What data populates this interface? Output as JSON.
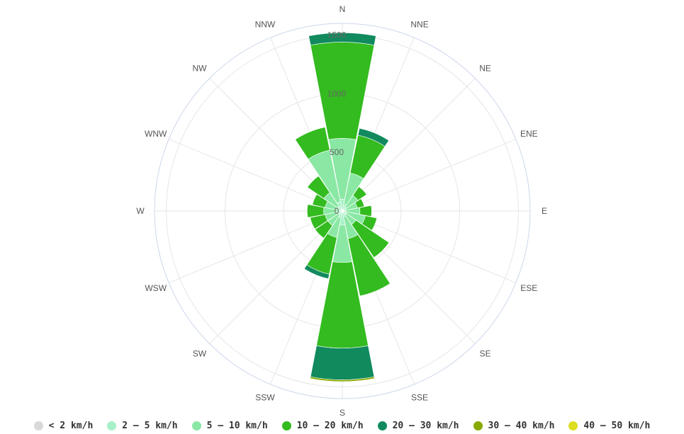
{
  "chart_data": {
    "type": "windrose",
    "title": "",
    "directions": [
      "N",
      "NNE",
      "NE",
      "ENE",
      "E",
      "ESE",
      "SE",
      "SSE",
      "S",
      "SSW",
      "SW",
      "WSW",
      "W",
      "WNW",
      "NW",
      "NNW"
    ],
    "radial_ticks": [
      0,
      500,
      1000,
      1500
    ],
    "radial_max": 1600,
    "legend_placement": "bottom",
    "series": [
      {
        "name": "< 2 km/h",
        "color": "#d9d9d9",
        "values": [
          0,
          0,
          0,
          0,
          0,
          0,
          0,
          0,
          0,
          0,
          0,
          0,
          0,
          0,
          0,
          0
        ]
      },
      {
        "name": "2 – 5 km/h",
        "color": "#a8f0c8",
        "values": [
          100,
          60,
          40,
          30,
          30,
          40,
          40,
          50,
          120,
          60,
          40,
          40,
          40,
          40,
          50,
          80
        ]
      },
      {
        "name": "5 – 10 km/h",
        "color": "#8ae8a4",
        "values": [
          520,
          270,
          120,
          100,
          120,
          160,
          100,
          190,
          320,
          170,
          110,
          110,
          120,
          110,
          140,
          450
        ]
      },
      {
        "name": "10 – 20 km/h",
        "color": "#33bb1f",
        "values": [
          820,
          330,
          90,
          60,
          100,
          100,
          340,
          500,
          730,
          320,
          130,
          130,
          140,
          110,
          170,
          200
        ]
      },
      {
        "name": "20 – 30 km/h",
        "color": "#118a5e",
        "values": [
          80,
          60,
          0,
          0,
          0,
          0,
          0,
          0,
          270,
          40,
          0,
          0,
          0,
          0,
          0,
          0
        ]
      },
      {
        "name": "30 – 40 km/h",
        "color": "#88aa00",
        "values": [
          0,
          0,
          0,
          0,
          0,
          0,
          0,
          0,
          15,
          0,
          0,
          0,
          0,
          0,
          0,
          0
        ]
      },
      {
        "name": "40 – 50 km/h",
        "color": "#dddd22",
        "values": [
          0,
          0,
          0,
          0,
          0,
          0,
          0,
          0,
          0,
          0,
          0,
          0,
          0,
          0,
          0,
          0
        ]
      }
    ]
  }
}
